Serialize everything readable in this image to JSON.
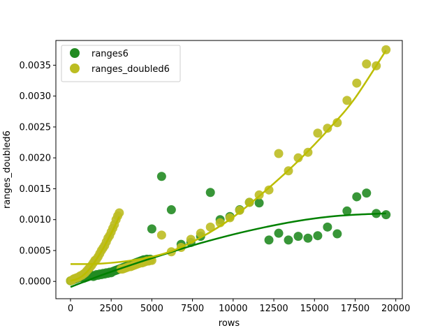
{
  "chart_data": {
    "type": "scatter",
    "xlabel": "rows",
    "ylabel": "ranges_doubled6",
    "xlim": [
      -900,
      20400
    ],
    "ylim": [
      -0.00028,
      0.0039
    ],
    "x_ticks": [
      0,
      2500,
      5000,
      7500,
      10000,
      12500,
      15000,
      17500,
      20000
    ],
    "x_tick_labels": [
      "0",
      "2500",
      "5000",
      "7500",
      "10000",
      "12500",
      "15000",
      "17500",
      "20000"
    ],
    "y_ticks": [
      0.0,
      0.0005,
      0.001,
      0.0015,
      0.002,
      0.0025,
      0.003,
      0.0035
    ],
    "y_tick_labels": [
      "0.0000",
      "0.0005",
      "0.0010",
      "0.0015",
      "0.0020",
      "0.0025",
      "0.0030",
      "0.0035"
    ],
    "grid": false,
    "legend_position": "upper-left",
    "series": [
      {
        "name": "ranges6",
        "color": "#228b22",
        "fit_color": "#008000",
        "fit_x_range": [
          0,
          19400
        ],
        "points": [
          [
            0,
            1e-05
          ],
          [
            100,
            2e-05
          ],
          [
            200,
            3e-05
          ],
          [
            300,
            4e-05
          ],
          [
            400,
            5e-05
          ],
          [
            500,
            6e-05
          ],
          [
            600,
            7e-05
          ],
          [
            700,
            8e-05
          ],
          [
            800,
            5e-05
          ],
          [
            900,
            6e-05
          ],
          [
            1000,
            7e-05
          ],
          [
            1100,
            8e-05
          ],
          [
            1200,
            9e-05
          ],
          [
            1300,
            0.0001
          ],
          [
            1400,
            8e-05
          ],
          [
            1500,
            9e-05
          ],
          [
            1600,
            0.00011
          ],
          [
            1700,
            0.0001
          ],
          [
            1800,
            0.00012
          ],
          [
            1900,
            0.00011
          ],
          [
            2000,
            0.00013
          ],
          [
            2100,
            0.00012
          ],
          [
            2200,
            0.00014
          ],
          [
            2300,
            0.00013
          ],
          [
            2400,
            0.00015
          ],
          [
            2500,
            0.00014
          ],
          [
            2600,
            0.00016
          ],
          [
            2700,
            0.00017
          ],
          [
            2800,
            0.00018
          ],
          [
            2900,
            0.00019
          ],
          [
            3000,
            0.0002
          ],
          [
            3100,
            0.00021
          ],
          [
            3200,
            0.00022
          ],
          [
            3300,
            0.00023
          ],
          [
            3400,
            0.00024
          ],
          [
            3500,
            0.00025
          ],
          [
            3600,
            0.00026
          ],
          [
            3700,
            0.00027
          ],
          [
            3800,
            0.00028
          ],
          [
            3900,
            0.00029
          ],
          [
            4000,
            0.0003
          ],
          [
            4100,
            0.00031
          ],
          [
            4200,
            0.00032
          ],
          [
            4300,
            0.00033
          ],
          [
            4400,
            0.00034
          ],
          [
            4500,
            0.00035
          ],
          [
            4600,
            0.00035
          ],
          [
            4700,
            0.00036
          ],
          [
            4800,
            0.00035
          ],
          [
            4900,
            0.00036
          ],
          [
            5000,
            0.00085
          ],
          [
            5600,
            0.0017
          ],
          [
            6200,
            0.00116
          ],
          [
            6800,
            0.0006
          ],
          [
            7400,
            0.00063
          ],
          [
            8000,
            0.00073
          ],
          [
            8600,
            0.00144
          ],
          [
            9200,
            0.001
          ],
          [
            9800,
            0.00105
          ],
          [
            10400,
            0.00116
          ],
          [
            11000,
            0.00128
          ],
          [
            11600,
            0.00127
          ],
          [
            12200,
            0.00067
          ],
          [
            12800,
            0.00078
          ],
          [
            13400,
            0.00067
          ],
          [
            14000,
            0.00073
          ],
          [
            14600,
            0.0007
          ],
          [
            15200,
            0.00074
          ],
          [
            15800,
            0.00088
          ],
          [
            16400,
            0.00077
          ],
          [
            17000,
            0.00114
          ],
          [
            17600,
            0.00137
          ],
          [
            18200,
            0.00143
          ],
          [
            18800,
            0.0011
          ],
          [
            19400,
            0.00108
          ]
        ],
        "fit": [
          [
            0,
            -9e-05
          ],
          [
            2000,
            0.00011
          ],
          [
            4000,
            0.00029
          ],
          [
            6000,
            0.00046
          ],
          [
            8000,
            0.00062
          ],
          [
            10000,
            0.00076
          ],
          [
            12000,
            0.00088
          ],
          [
            14000,
            0.00098
          ],
          [
            16000,
            0.00105
          ],
          [
            17500,
            0.00108
          ],
          [
            19400,
            0.0011
          ]
        ]
      },
      {
        "name": "ranges_doubled6",
        "color": "#bcbd22",
        "fit_color": "#bcbd00",
        "fit_x_range": [
          0,
          19400
        ],
        "points": [
          [
            0,
            1e-05
          ],
          [
            100,
            2e-05
          ],
          [
            200,
            4e-05
          ],
          [
            300,
            5e-05
          ],
          [
            400,
            6e-05
          ],
          [
            500,
            7e-05
          ],
          [
            600,
            9e-05
          ],
          [
            700,
            0.0001
          ],
          [
            800,
            0.00012
          ],
          [
            900,
            0.00014
          ],
          [
            1000,
            0.00017
          ],
          [
            1100,
            0.0002
          ],
          [
            1200,
            0.00023
          ],
          [
            1300,
            0.00026
          ],
          [
            1400,
            0.0003
          ],
          [
            1500,
            0.00034
          ],
          [
            1600,
            0.00036
          ],
          [
            1700,
            0.0004
          ],
          [
            1800,
            0.00045
          ],
          [
            1900,
            0.0005
          ],
          [
            2000,
            0.00054
          ],
          [
            2100,
            0.00058
          ],
          [
            2200,
            0.00064
          ],
          [
            2300,
            0.0007
          ],
          [
            2400,
            0.00074
          ],
          [
            2500,
            0.0008
          ],
          [
            2600,
            0.00086
          ],
          [
            2700,
            0.00092
          ],
          [
            2800,
            0.001
          ],
          [
            2900,
            0.00106
          ],
          [
            3000,
            0.00111
          ],
          [
            3100,
            0.0002
          ],
          [
            3200,
            0.0002
          ],
          [
            3300,
            0.00021
          ],
          [
            3400,
            0.00022
          ],
          [
            3500,
            0.00023
          ],
          [
            3600,
            0.00024
          ],
          [
            3700,
            0.00024
          ],
          [
            3800,
            0.00025
          ],
          [
            3900,
            0.00026
          ],
          [
            4000,
            0.00027
          ],
          [
            4100,
            0.00028
          ],
          [
            4200,
            0.00029
          ],
          [
            4300,
            0.0003
          ],
          [
            4400,
            0.0003
          ],
          [
            4500,
            0.00031
          ],
          [
            4600,
            0.00032
          ],
          [
            4700,
            0.00033
          ],
          [
            4800,
            0.00033
          ],
          [
            4900,
            0.00034
          ],
          [
            5000,
            0.00034
          ],
          [
            5600,
            0.00075
          ],
          [
            6200,
            0.00048
          ],
          [
            6800,
            0.00055
          ],
          [
            7400,
            0.00068
          ],
          [
            8000,
            0.00078
          ],
          [
            8600,
            0.00088
          ],
          [
            9200,
            0.00095
          ],
          [
            9800,
            0.00103
          ],
          [
            10400,
            0.00115
          ],
          [
            11000,
            0.00128
          ],
          [
            11600,
            0.0014
          ],
          [
            12200,
            0.00148
          ],
          [
            12800,
            0.00207
          ],
          [
            13400,
            0.00179
          ],
          [
            14000,
            0.002
          ],
          [
            14600,
            0.00209
          ],
          [
            15200,
            0.0024
          ],
          [
            15800,
            0.00248
          ],
          [
            16400,
            0.00257
          ],
          [
            17000,
            0.00293
          ],
          [
            17600,
            0.00321
          ],
          [
            18200,
            0.00352
          ],
          [
            18800,
            0.00349
          ],
          [
            19400,
            0.00375
          ]
        ],
        "fit": [
          [
            0,
            0.00028
          ],
          [
            2000,
            0.00029
          ],
          [
            4000,
            0.00035
          ],
          [
            6000,
            0.00047
          ],
          [
            8000,
            0.00071
          ],
          [
            10000,
            0.00104
          ],
          [
            12000,
            0.00147
          ],
          [
            14000,
            0.00195
          ],
          [
            16000,
            0.0025
          ],
          [
            17500,
            0.00297
          ],
          [
            19400,
            0.00374
          ]
        ],
        "fit2": [
          [
            0,
            1e-05
          ],
          [
            500,
            5e-05
          ],
          [
            1000,
            0.00015
          ],
          [
            1500,
            0.00032
          ],
          [
            2000,
            0.00053
          ],
          [
            2500,
            0.00078
          ],
          [
            3000,
            0.00105
          ]
        ]
      }
    ]
  }
}
